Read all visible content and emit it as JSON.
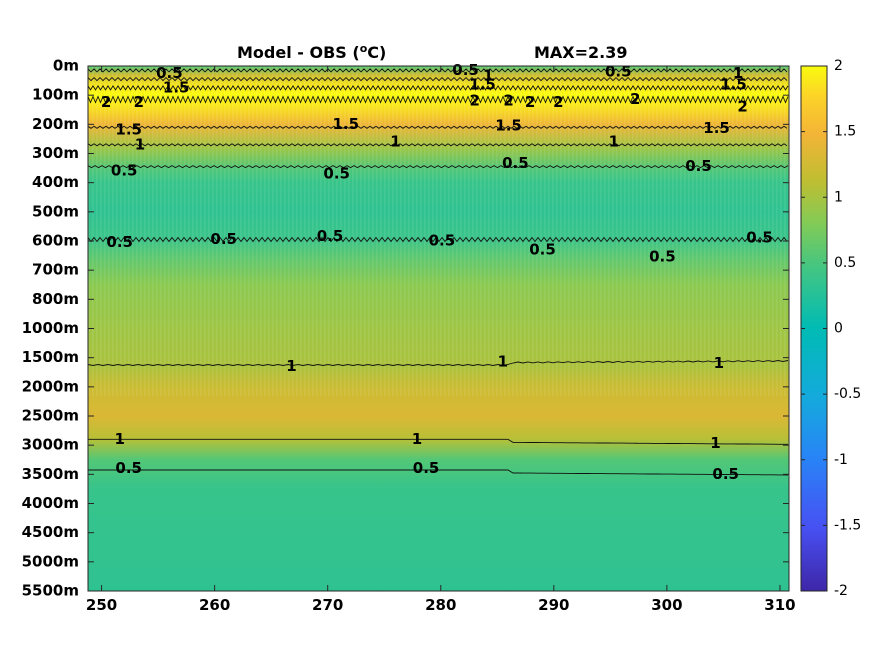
{
  "chart_data": {
    "type": "heatmap",
    "title_left": "Model - OBS (",
    "title_unit_sup": "o",
    "title_unit_tail": "C)",
    "title_right": "MAX=2.39",
    "x_ticks": [
      250,
      260,
      270,
      280,
      290,
      300,
      310
    ],
    "xlim": [
      248.8,
      310.8
    ],
    "y_ticks": [
      "0m",
      "100m",
      "200m",
      "300m",
      "400m",
      "500m",
      "600m",
      "700m",
      "800m",
      "1000m",
      "1500m",
      "2000m",
      "2500m",
      "3000m",
      "3500m",
      "4000m",
      "4500m",
      "5000m",
      "5500m"
    ],
    "colorbar": {
      "ticks": [
        2,
        1.5,
        1,
        0.5,
        0,
        -0.5,
        -1,
        -1.5,
        -2
      ],
      "range": [
        -2,
        2
      ],
      "colormap": "parula"
    },
    "depth_profile": [
      {
        "level": 0.0,
        "value": 0.55
      },
      {
        "level": 0.3,
        "value": 1.2
      },
      {
        "level": 0.7,
        "value": 1.9
      },
      {
        "level": 1.0,
        "value": 2.1
      },
      {
        "level": 1.3,
        "value": 1.9
      },
      {
        "level": 2.0,
        "value": 1.45
      },
      {
        "level": 2.8,
        "value": 0.95
      },
      {
        "level": 3.5,
        "value": 0.55
      },
      {
        "level": 4.0,
        "value": 0.38
      },
      {
        "level": 5.0,
        "value": 0.32
      },
      {
        "level": 5.9,
        "value": 0.4
      },
      {
        "level": 6.6,
        "value": 0.62
      },
      {
        "level": 7.5,
        "value": 0.85
      },
      {
        "level": 9.0,
        "value": 0.95
      },
      {
        "level": 10.3,
        "value": 1.02
      },
      {
        "level": 11.0,
        "value": 1.2
      },
      {
        "level": 12.0,
        "value": 1.32
      },
      {
        "level": 12.8,
        "value": 1.08
      },
      {
        "level": 13.5,
        "value": 0.55
      },
      {
        "level": 14.5,
        "value": 0.38
      },
      {
        "level": 18.0,
        "value": 0.32
      }
    ],
    "contour_labels": [
      {
        "text": "0.5",
        "x": 256.0,
        "level": 0.25
      },
      {
        "text": "1.5",
        "x": 256.6,
        "level": 0.75
      },
      {
        "text": "2",
        "x": 250.4,
        "level": 1.25
      },
      {
        "text": "2",
        "x": 253.3,
        "level": 1.25
      },
      {
        "text": "0.5",
        "x": 282.2,
        "level": 0.15
      },
      {
        "text": "1",
        "x": 284.2,
        "level": 0.35
      },
      {
        "text": "1.5",
        "x": 283.7,
        "level": 0.65
      },
      {
        "text": "2",
        "x": 283.0,
        "level": 1.2
      },
      {
        "text": "2",
        "x": 286.0,
        "level": 1.2
      },
      {
        "text": "2",
        "x": 287.9,
        "level": 1.25
      },
      {
        "text": "2",
        "x": 290.4,
        "level": 1.25
      },
      {
        "text": "0.5",
        "x": 295.7,
        "level": 0.2
      },
      {
        "text": "1",
        "x": 306.3,
        "level": 0.25
      },
      {
        "text": "1.5",
        "x": 305.9,
        "level": 0.65
      },
      {
        "text": "2",
        "x": 297.2,
        "level": 1.15
      },
      {
        "text": "2",
        "x": 306.7,
        "level": 1.4
      },
      {
        "text": "1.5",
        "x": 252.4,
        "level": 2.2
      },
      {
        "text": "1",
        "x": 253.4,
        "level": 2.7
      },
      {
        "text": "1.5",
        "x": 271.6,
        "level": 2.0
      },
      {
        "text": "1",
        "x": 276.0,
        "level": 2.6
      },
      {
        "text": "1.5",
        "x": 286.0,
        "level": 2.05
      },
      {
        "text": "1",
        "x": 295.3,
        "level": 2.6
      },
      {
        "text": "1.5",
        "x": 304.4,
        "level": 2.15
      },
      {
        "text": "0.5",
        "x": 252.0,
        "level": 3.6
      },
      {
        "text": "0.5",
        "x": 270.8,
        "level": 3.7
      },
      {
        "text": "0.5",
        "x": 286.6,
        "level": 3.35
      },
      {
        "text": "0.5",
        "x": 302.8,
        "level": 3.45
      },
      {
        "text": "0.5",
        "x": 251.6,
        "level": 6.05
      },
      {
        "text": "0.5",
        "x": 260.8,
        "level": 5.95
      },
      {
        "text": "0.5",
        "x": 270.2,
        "level": 5.85
      },
      {
        "text": "0.5",
        "x": 280.1,
        "level": 6.0
      },
      {
        "text": "0.5",
        "x": 289.0,
        "level": 6.3
      },
      {
        "text": "0.5",
        "x": 299.6,
        "level": 6.55
      },
      {
        "text": "0.5",
        "x": 308.2,
        "level": 5.9
      },
      {
        "text": "1",
        "x": 266.8,
        "level": 10.3
      },
      {
        "text": "1",
        "x": 285.5,
        "level": 10.15
      },
      {
        "text": "1",
        "x": 304.6,
        "level": 10.2
      },
      {
        "text": "1",
        "x": 251.6,
        "level": 12.8
      },
      {
        "text": "1",
        "x": 277.9,
        "level": 12.8
      },
      {
        "text": "1",
        "x": 304.3,
        "level": 12.95
      },
      {
        "text": "0.5",
        "x": 252.4,
        "level": 13.8
      },
      {
        "text": "0.5",
        "x": 278.7,
        "level": 13.8
      },
      {
        "text": "0.5",
        "x": 305.2,
        "level": 14.0
      }
    ]
  }
}
